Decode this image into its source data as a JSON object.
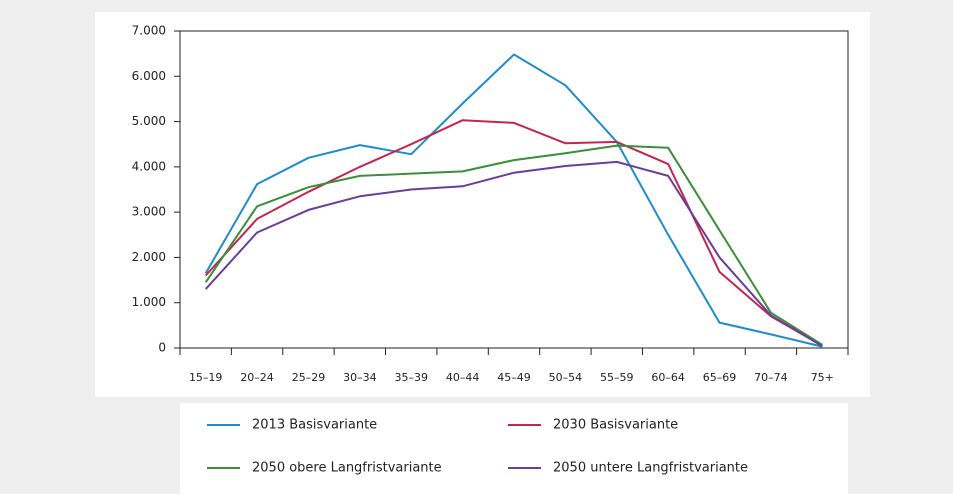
{
  "chart_data": {
    "type": "line",
    "categories": [
      "15–19",
      "20–24",
      "25–29",
      "30–34",
      "35–39",
      "40–44",
      "45–49",
      "50–54",
      "55–59",
      "60–64",
      "65–69",
      "70–74",
      "75+"
    ],
    "series": [
      {
        "name": "2013 Basisvariante",
        "color": "#1e8ccc",
        "values": [
          1650,
          3620,
          4200,
          4480,
          4280,
          5400,
          6480,
          5800,
          4550,
          2500,
          560,
          300,
          30
        ]
      },
      {
        "name": "2030 Basisvariante",
        "color": "#c42550",
        "values": [
          1600,
          2850,
          3450,
          4000,
          4500,
          5030,
          4970,
          4520,
          4550,
          4060,
          1680,
          700,
          50
        ]
      },
      {
        "name": "2050 obere Langfristvariante",
        "color": "#3a8f3a",
        "values": [
          1450,
          3130,
          3550,
          3800,
          3850,
          3900,
          4150,
          4300,
          4470,
          4420,
          2600,
          780,
          70
        ]
      },
      {
        "name": "2050 untere Langfristvariante",
        "color": "#6b3c98",
        "values": [
          1300,
          2550,
          3050,
          3350,
          3500,
          3570,
          3870,
          4020,
          4110,
          3800,
          2000,
          720,
          40
        ]
      }
    ],
    "ylim": [
      0,
      7000
    ],
    "yticks": [
      0,
      {
        "value": 1000,
        "label": "1.000"
      },
      {
        "value": 2000,
        "label": "2.000"
      },
      {
        "value": 3000,
        "label": "3.000"
      },
      {
        "value": 4000,
        "label": "4.000"
      },
      {
        "value": 5000,
        "label": "5.000"
      },
      {
        "value": 6000,
        "label": "6.000"
      },
      {
        "value": 7000,
        "label": "7.000"
      }
    ],
    "grid": false
  }
}
